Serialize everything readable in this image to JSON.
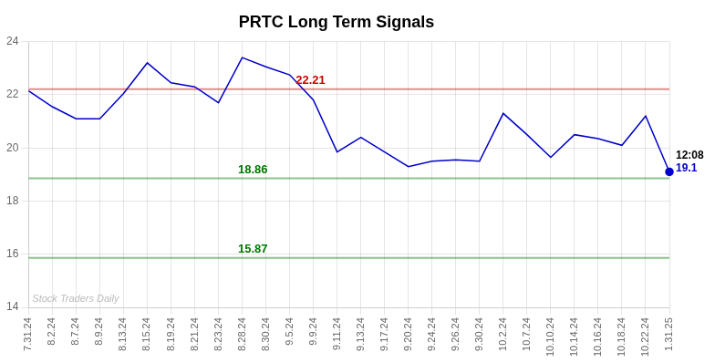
{
  "chart_data": {
    "type": "line",
    "title": "PRTC Long Term Signals",
    "categories": [
      "7.31.24",
      "8.2.24",
      "8.7.24",
      "8.9.24",
      "8.13.24",
      "8.15.24",
      "8.19.24",
      "8.21.24",
      "8.23.24",
      "8.28.24",
      "8.30.24",
      "9.5.24",
      "9.9.24",
      "9.11.24",
      "9.13.24",
      "9.17.24",
      "9.20.24",
      "9.24.24",
      "9.26.24",
      "9.30.24",
      "10.2.24",
      "10.7.24",
      "10.10.24",
      "10.14.24",
      "10.16.24",
      "10.18.24",
      "10.22.24",
      "1.31.25"
    ],
    "values": [
      22.15,
      21.55,
      21.1,
      21.1,
      22.05,
      23.2,
      22.45,
      22.3,
      21.7,
      23.4,
      23.05,
      22.75,
      21.8,
      19.85,
      20.4,
      19.85,
      19.3,
      19.5,
      19.55,
      19.5,
      21.3,
      20.5,
      19.65,
      20.5,
      20.35,
      20.1,
      21.2,
      19.1
    ],
    "color": "#0000cc",
    "ylim": [
      14,
      24
    ],
    "yticks": [
      14,
      16,
      18,
      20,
      22,
      24
    ],
    "grid": true,
    "hlines": [
      {
        "value": 22.21,
        "label": "22.21",
        "color": "#cc0000"
      },
      {
        "value": 18.86,
        "label": "18.86",
        "color": "#007700"
      },
      {
        "value": 15.87,
        "label": "15.87",
        "color": "#007700"
      }
    ],
    "annotations": [
      {
        "text": "12:08",
        "color": "#000000"
      },
      {
        "text": "19.1",
        "color": "#0000cc"
      }
    ],
    "watermark": {
      "text": "Stock Traders Daily",
      "color": "#bbbbbb"
    }
  }
}
